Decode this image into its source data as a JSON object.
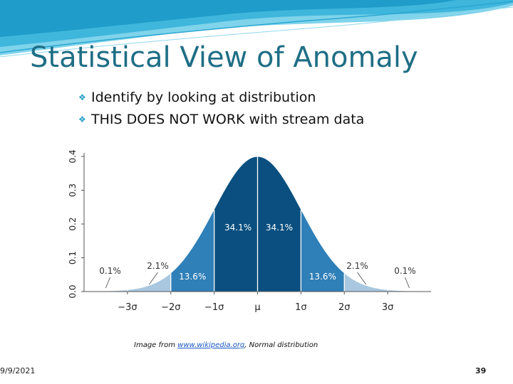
{
  "slide": {
    "title": "Statistical View of Anomaly",
    "bullets": [
      {
        "glyph": "❖",
        "text": "Identify by looking at distribution"
      },
      {
        "glyph": "❖",
        "text": "THIS DOES NOT WORK with stream data"
      }
    ],
    "caption": {
      "prefix": "Image from ",
      "link": "www.wikipedia.org",
      "suffix": ", Normal distribution"
    },
    "date": "9/9/2021",
    "page_number": "39"
  },
  "colors": {
    "title": "#1f6e86",
    "dark_blue": "#0a4f7f",
    "mid_blue": "#2f7fb8",
    "light_blue": "#76a9cf",
    "pale_blue": "#a9c7de",
    "banner": "#55c3e2"
  },
  "chart_data": {
    "type": "area",
    "title": "",
    "y_ticks": [
      "0.0",
      "0.1",
      "0.2",
      "0.3",
      "0.4"
    ],
    "ylim": [
      0,
      0.4
    ],
    "x_ticks": [
      "−3σ",
      "−2σ",
      "−1σ",
      "μ",
      "1σ",
      "2σ",
      "3σ"
    ],
    "xlim": [
      -4,
      4
    ],
    "bands": [
      {
        "from": -4,
        "to": -3,
        "label": "0.1%"
      },
      {
        "from": -3,
        "to": -2,
        "label": "2.1%"
      },
      {
        "from": -2,
        "to": -1,
        "label": "13.6%"
      },
      {
        "from": -1,
        "to": 0,
        "label": "34.1%"
      },
      {
        "from": 0,
        "to": 1,
        "label": "34.1%"
      },
      {
        "from": 1,
        "to": 2,
        "label": "13.6%"
      },
      {
        "from": 2,
        "to": 3,
        "label": "2.1%"
      },
      {
        "from": 3,
        "to": 4,
        "label": "0.1%"
      }
    ]
  }
}
